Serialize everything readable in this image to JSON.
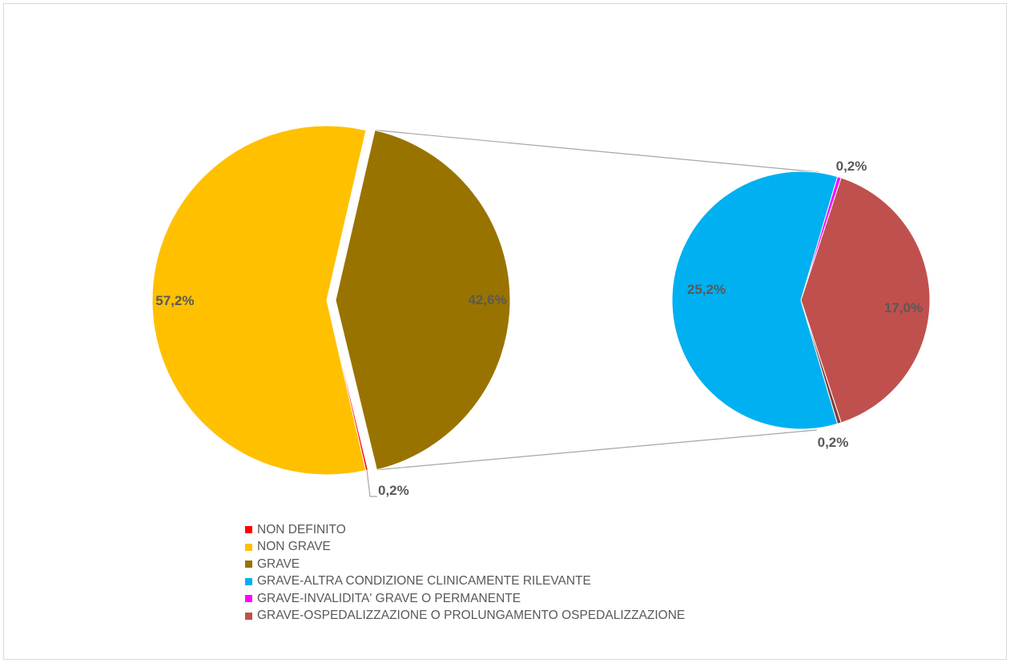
{
  "chart_data": {
    "type": "pie",
    "subtype": "pie-of-pie",
    "primary_pie": {
      "slices": [
        {
          "name": "NON DEFINITO",
          "value": 0.2,
          "label": "0,2%",
          "color": "#ff0000"
        },
        {
          "name": "NON GRAVE",
          "value": 57.2,
          "label": "57,2%",
          "color": "#ffc000"
        },
        {
          "name": "GRAVE",
          "value": 42.6,
          "label": "42,6%",
          "color": "#997300"
        }
      ]
    },
    "secondary_pie": {
      "breakdown_of": "GRAVE",
      "slices": [
        {
          "name": "GRAVE-ALTRA CONDIZIONE CLINICAMENTE RILEVANTE",
          "value": 25.2,
          "label": "25,2%",
          "color": "#00b0f0"
        },
        {
          "name": "GRAVE-INVALIDITA' GRAVE O PERMANENTE",
          "value": 0.2,
          "label": "0,2%",
          "color": "#ff00ff"
        },
        {
          "name": "GRAVE-OSPEDALIZZAZIONE O PROLUNGAMENTO OSPEDALIZZAZIONE",
          "value": 17.0,
          "label": "17,0%",
          "color": "#c0504d"
        },
        {
          "name": "",
          "value": 0.2,
          "label": "0,2%",
          "color": "#7f3f3f"
        }
      ]
    },
    "legend": {
      "position": "bottom-left",
      "entries": [
        {
          "label": "NON DEFINITO",
          "color": "#ff0000"
        },
        {
          "label": "NON GRAVE",
          "color": "#ffc000"
        },
        {
          "label": "GRAVE",
          "color": "#997300"
        },
        {
          "label": "GRAVE-ALTRA CONDIZIONE CLINICAMENTE RILEVANTE",
          "color": "#00b0f0"
        },
        {
          "label": "GRAVE-INVALIDITA' GRAVE O PERMANENTE",
          "color": "#ff00ff"
        },
        {
          "label": "GRAVE-OSPEDALIZZAZIONE O PROLUNGAMENTO OSPEDALIZZAZIONE",
          "color": "#c0504d"
        }
      ]
    }
  }
}
